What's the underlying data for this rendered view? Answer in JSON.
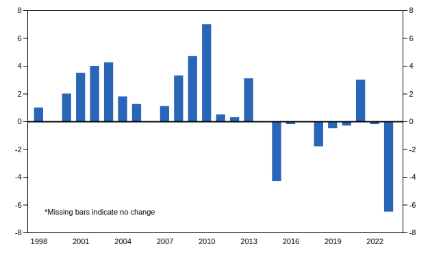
{
  "chart_data": {
    "type": "bar",
    "x": [
      1998,
      1999,
      2000,
      2001,
      2002,
      2003,
      2004,
      2005,
      2006,
      2007,
      2008,
      2009,
      2010,
      2011,
      2012,
      2013,
      2014,
      2015,
      2016,
      2017,
      2018,
      2019,
      2020,
      2021,
      2022,
      2023
    ],
    "values": [
      1.0,
      0.0,
      2.0,
      3.5,
      4.0,
      4.25,
      1.8,
      1.25,
      0.0,
      1.1,
      3.3,
      4.7,
      7.0,
      0.5,
      0.3,
      3.1,
      0.0,
      -4.3,
      -0.2,
      0.0,
      -1.8,
      -0.5,
      -0.3,
      3.0,
      -0.2,
      -6.5
    ],
    "color": "#2966B8",
    "xlim": [
      1997.2,
      2024.0
    ],
    "xticks": [
      1998,
      2001,
      2004,
      2007,
      2010,
      2013,
      2016,
      2019,
      2022
    ],
    "ylim": [
      -8,
      8
    ],
    "yticks": [
      -8,
      -6,
      -4,
      -2,
      0,
      2,
      4,
      6,
      8
    ],
    "annotations": [
      {
        "text": "*Missing bars indicate no change",
        "x": 1998.4,
        "y": -6.5
      }
    ],
    "grid": false
  }
}
